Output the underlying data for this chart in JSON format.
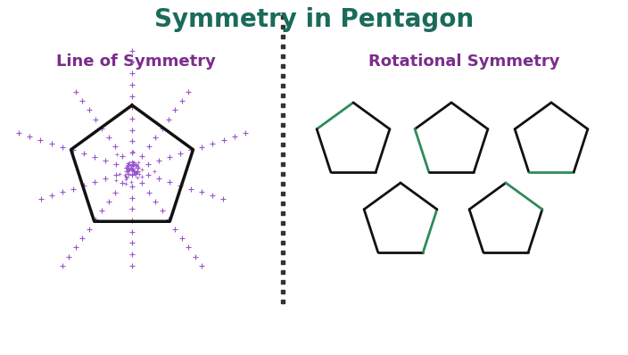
{
  "title": "Symmetry in Pentagon",
  "title_color": "#1a6b5a",
  "title_fontsize": 20,
  "left_label": "Line of Symmetry",
  "left_label_color": "#7b2d8b",
  "right_label": "Rotational Symmetry",
  "right_label_color": "#7b2d8b",
  "label_fontsize": 13,
  "pentagon_black": "#111111",
  "pentagon_green": "#2e8b5a",
  "dot_color": "#9955cc",
  "divider_color": "#333333",
  "bg_color": "#ffffff",
  "fig_width": 7.04,
  "fig_height": 3.98,
  "dpi": 100
}
